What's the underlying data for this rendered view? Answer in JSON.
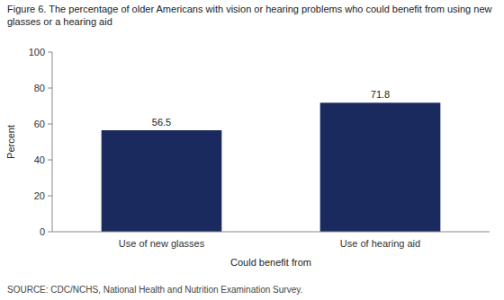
{
  "chart_data": {
    "type": "bar",
    "title": "Figure 6. The percentage of older Americans with vision or hearing problems who could benefit from using new glasses or a hearing aid",
    "source": "SOURCE: CDC/NCHS, National Health and Nutrition Examination Survey.",
    "categories": [
      "Use of new glasses",
      "Use of hearing aid"
    ],
    "values": [
      56.5,
      71.8
    ],
    "color": "#1a2a5e",
    "xlabel": "Could benefit from",
    "ylabel": "Percent",
    "ylim": [
      0,
      100
    ],
    "yticks": [
      0,
      20,
      40,
      60,
      80,
      100
    ],
    "data_labels": true,
    "grid": false
  }
}
